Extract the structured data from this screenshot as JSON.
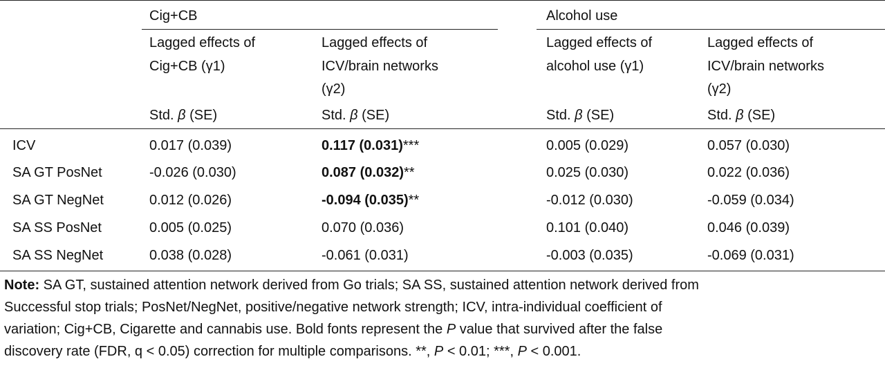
{
  "groups": {
    "cigcb": "Cig+CB",
    "alcohol": "Alcohol use"
  },
  "subheaders": {
    "c1": [
      "Lagged effects of",
      "Cig+CB (γ1)"
    ],
    "c2": [
      "Lagged effects of",
      "ICV/brain networks",
      "(γ2)"
    ],
    "c3": [
      "Lagged effects of",
      "alcohol use (γ1)"
    ],
    "c4": [
      "Lagged effects of",
      "ICV/brain networks",
      "(γ2)"
    ]
  },
  "stat_header": {
    "prefix": "Std.",
    "beta": "β",
    "suffix": "(SE)"
  },
  "rows": [
    {
      "label": "ICV",
      "c1": "0.017 (0.039)",
      "c2": "0.117 (0.031)",
      "c2_sig": "***",
      "c2_bold": true,
      "c3": "0.005 (0.029)",
      "c4": "0.057 (0.030)"
    },
    {
      "label": "SA GT PosNet",
      "c1": "-0.026 (0.030)",
      "c2": "0.087 (0.032)",
      "c2_sig": "**",
      "c2_bold": true,
      "c3": "0.025 (0.030)",
      "c4": "0.022 (0.036)"
    },
    {
      "label": "SA GT NegNet",
      "c1": "0.012 (0.026)",
      "c2": "-0.094 (0.035)",
      "c2_sig": "**",
      "c2_bold": true,
      "c3": "-0.012 (0.030)",
      "c4": "-0.059 (0.034)"
    },
    {
      "label": "SA SS PosNet",
      "c1": "0.005 (0.025)",
      "c2": "0.070 (0.036)",
      "c2_sig": "",
      "c2_bold": false,
      "c3": "0.101 (0.040)",
      "c4": "0.046 (0.039)"
    },
    {
      "label": "SA SS NegNet",
      "c1": "0.038 (0.028)",
      "c2": "-0.061 (0.031)",
      "c2_sig": "",
      "c2_bold": false,
      "c3": "-0.003 (0.035)",
      "c4": "-0.069 (0.031)"
    }
  ],
  "note": {
    "label": "Note:",
    "line1": "SA GT, sustained attention network derived from Go trials; SA SS, sustained attention network derived from",
    "line2": "Successful stop trials; PosNet/NegNet, positive/negative network strength; ICV, intra-individual coefficient of",
    "line3": "variation; Cig+CB, Cigarette and cannabis use. Bold fonts represent the",
    "line3_p": "P",
    "line3_end": "value that survived after the false",
    "line4a": "discovery rate (FDR, q < 0.05) correction for multiple comparisons. **,",
    "line4_p1": "P",
    "line4b": "< 0.01; ***,",
    "line4_p2": "P",
    "line4c": "< 0.001."
  }
}
